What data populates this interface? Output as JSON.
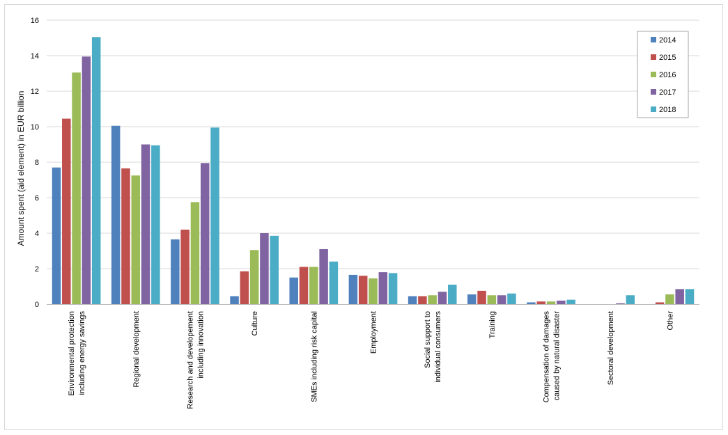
{
  "chart_data": {
    "type": "bar",
    "title": "",
    "xlabel": "",
    "ylabel": "Amount spent (aid element) in EUR billion",
    "ylim": [
      0,
      16
    ],
    "yticks": [
      0,
      2,
      4,
      6,
      8,
      10,
      12,
      14,
      16
    ],
    "grid": true,
    "legend_position": "top-right",
    "categories": [
      "Environmental protection including energy savings",
      "Regional development",
      "Research and developement including innovation",
      "Culture",
      "SMEs including risk capital",
      "Employment",
      "Social support to individual consumers",
      "Training",
      "Compensation of damages caused by natural disaster",
      "Sectoral development",
      "Other"
    ],
    "category_label_lines": [
      [
        "Environmental protection",
        "including energy savings"
      ],
      [
        "Regional development"
      ],
      [
        "Research and developement",
        "including innovation"
      ],
      [
        "Culture"
      ],
      [
        "SMEs including risk capital"
      ],
      [
        "Employment"
      ],
      [
        "Social support to",
        "individual consumers"
      ],
      [
        "Training"
      ],
      [
        "Compensation of damages",
        "caused by natural disaster"
      ],
      [
        "Sectoral development"
      ],
      [
        "Other"
      ]
    ],
    "series": [
      {
        "name": "2014",
        "color": "#4f81bd",
        "values": [
          7.7,
          10.05,
          3.65,
          0.45,
          1.5,
          1.65,
          0.45,
          0.55,
          0.1,
          0.0,
          0.0
        ]
      },
      {
        "name": "2015",
        "color": "#c0504d",
        "values": [
          10.45,
          7.65,
          4.2,
          1.85,
          2.1,
          1.6,
          0.45,
          0.75,
          0.15,
          0.0,
          0.1
        ]
      },
      {
        "name": "2016",
        "color": "#9bbb59",
        "values": [
          13.05,
          7.25,
          5.75,
          3.05,
          2.1,
          1.45,
          0.5,
          0.5,
          0.15,
          0.0,
          0.55
        ]
      },
      {
        "name": "2017",
        "color": "#8064a2",
        "values": [
          13.95,
          9.0,
          7.95,
          4.0,
          3.1,
          1.8,
          0.7,
          0.5,
          0.2,
          0.05,
          0.85
        ]
      },
      {
        "name": "2018",
        "color": "#4bacc6",
        "values": [
          15.05,
          8.95,
          9.95,
          3.85,
          2.4,
          1.75,
          1.1,
          0.6,
          0.25,
          0.5,
          0.85
        ]
      }
    ]
  }
}
